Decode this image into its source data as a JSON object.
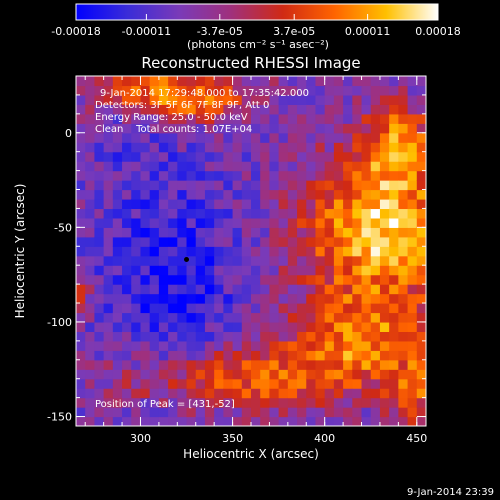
{
  "chart_data": {
    "type": "heatmap",
    "title": "Reconstructed RHESSI Image",
    "xlabel": "Heliocentric X (arcsec)",
    "ylabel": "Heliocentric Y (arcsec)",
    "xlim": [
      265,
      455
    ],
    "ylim": [
      -155,
      30
    ],
    "x_ticks": [
      "300",
      "350",
      "400",
      "450"
    ],
    "y_ticks": [
      "0",
      "-50",
      "-100",
      "-150"
    ],
    "colorbar": {
      "range": [
        -0.00018,
        0.00018
      ],
      "tick_labels": [
        "-0.00018",
        "-0.00011",
        "-3.7e-05",
        "3.7e-05",
        "0.00011",
        "0.00018"
      ],
      "unit_label": "(photons cm⁻² s⁻¹ asec⁻²)",
      "colors": [
        "#0000ff",
        "#3a2cd8",
        "#7a3ab8",
        "#a0307c",
        "#d02a14",
        "#ff6400",
        "#ffc000",
        "#ffffff"
      ]
    },
    "annotations": {
      "time_range": "9-Jan-2014 17:29:48.000 to 17:35:42.000",
      "detectors": "Detectors: 3F 5F 6F 7F 8F 9F, Att 0",
      "energy_range": "Energy Range: 25.0 - 50.0 keV",
      "method_counts": "Clean    Total counts: 1.07E+04",
      "peak_position": "Position of Peak = [431,-52]"
    },
    "marker": {
      "x": 325,
      "y": -67
    },
    "date_stamp": "9-Jan-2014 23:39"
  }
}
